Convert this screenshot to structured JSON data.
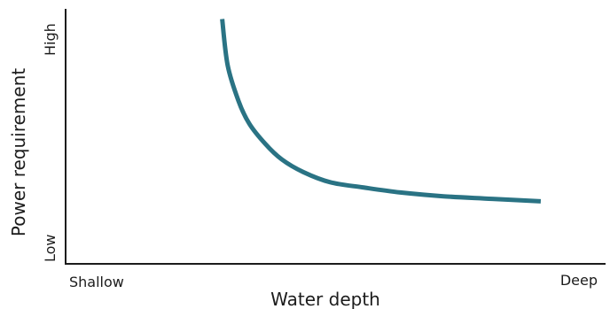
{
  "chart_data": {
    "type": "line",
    "title": "",
    "xlabel": "Water depth",
    "ylabel": "Power requirement",
    "x_tick_labels": [
      "Shallow",
      "Deep"
    ],
    "y_tick_labels": [
      "Low",
      "High"
    ],
    "xlim": [
      0,
      1
    ],
    "ylim": [
      0,
      1
    ],
    "grid": false,
    "legend": "none",
    "series": [
      {
        "color": "#2a7384",
        "x": [
          0.29,
          0.3,
          0.32,
          0.34,
          0.37,
          0.4,
          0.44,
          0.49,
          0.55,
          0.62,
          0.7,
          0.79,
          0.88
        ],
        "y": [
          0.96,
          0.78,
          0.64,
          0.55,
          0.47,
          0.41,
          0.36,
          0.32,
          0.3,
          0.28,
          0.265,
          0.255,
          0.245
        ]
      }
    ]
  }
}
